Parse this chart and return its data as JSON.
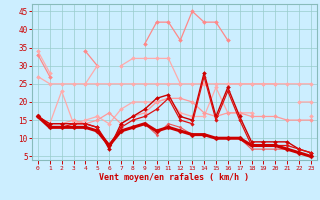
{
  "xlabel": "Vent moyen/en rafales ( km/h )",
  "background_color": "#cceeff",
  "grid_color": "#99cccc",
  "x": [
    0,
    1,
    2,
    3,
    4,
    5,
    6,
    7,
    8,
    9,
    10,
    11,
    12,
    13,
    14,
    15,
    16,
    17,
    18,
    19,
    20,
    21,
    22,
    23
  ],
  "ylim": [
    4,
    47
  ],
  "yticks": [
    5,
    10,
    15,
    20,
    25,
    30,
    35,
    40,
    45
  ],
  "lines": [
    {
      "y": [
        33,
        27,
        null,
        null,
        34,
        30,
        null,
        null,
        null,
        36,
        42,
        42,
        37,
        45,
        42,
        42,
        37,
        null,
        null,
        null,
        null,
        null,
        null,
        null
      ],
      "color": "#ff8888",
      "linewidth": 0.9,
      "marker": "D",
      "markersize": 2.0,
      "zorder": 2
    },
    {
      "y": [
        34,
        28,
        null,
        null,
        25,
        30,
        null,
        30,
        32,
        32,
        32,
        32,
        25,
        null,
        25,
        null,
        25,
        25,
        25,
        25,
        25,
        null,
        null,
        16
      ],
      "color": "#ffaaaa",
      "linewidth": 0.9,
      "marker": "D",
      "markersize": 2.0,
      "zorder": 2
    },
    {
      "y": [
        27,
        25,
        25,
        25,
        25,
        25,
        25,
        25,
        25,
        25,
        25,
        25,
        25,
        25,
        25,
        25,
        25,
        25,
        25,
        25,
        25,
        25,
        25,
        25
      ],
      "color": "#ffaaaa",
      "linewidth": 0.9,
      "marker": "D",
      "markersize": 2.0,
      "zorder": 2
    },
    {
      "y": [
        16,
        14,
        23,
        14,
        15,
        16,
        14,
        18,
        20,
        20,
        20,
        21,
        17,
        16,
        16,
        24,
        17,
        17,
        17,
        null,
        null,
        null,
        20,
        20
      ],
      "color": "#ffaaaa",
      "linewidth": 0.9,
      "marker": "D",
      "markersize": 2.0,
      "zorder": 2
    },
    {
      "y": [
        16,
        14,
        14,
        15,
        14,
        15,
        17,
        14,
        16,
        17,
        20,
        21,
        21,
        20,
        17,
        16,
        17,
        17,
        16,
        16,
        16,
        15,
        15,
        15
      ],
      "color": "#ff9999",
      "linewidth": 0.9,
      "marker": "D",
      "markersize": 2.0,
      "zorder": 2
    },
    {
      "y": [
        16,
        14,
        14,
        14,
        14,
        13,
        7,
        14,
        16,
        18,
        21,
        22,
        16,
        15,
        28,
        16,
        24,
        16,
        9,
        9,
        9,
        9,
        7,
        6
      ],
      "color": "#cc0000",
      "linewidth": 1.0,
      "marker": "D",
      "markersize": 2.0,
      "zorder": 3
    },
    {
      "y": [
        16,
        13,
        13,
        14,
        14,
        13,
        8,
        13,
        15,
        16,
        18,
        21,
        15,
        14,
        27,
        15,
        23,
        15,
        8,
        8,
        8,
        8,
        7,
        6
      ],
      "color": "#dd1111",
      "linewidth": 0.9,
      "marker": "D",
      "markersize": 1.8,
      "zorder": 3
    },
    {
      "y": [
        16,
        13,
        13,
        13,
        13,
        12,
        8,
        12,
        13,
        14,
        12,
        13,
        12,
        11,
        11,
        10,
        10,
        10,
        8,
        8,
        8,
        7,
        6,
        5
      ],
      "color": "#cc0000",
      "linewidth": 2.2,
      "marker": "D",
      "markersize": 2.5,
      "zorder": 4
    },
    {
      "y": [
        16,
        13,
        13,
        13,
        13,
        12,
        8,
        12,
        13,
        14,
        11,
        14,
        13,
        11,
        11,
        10,
        10,
        10,
        7,
        7,
        7,
        7,
        6,
        5
      ],
      "color": "#ee5555",
      "linewidth": 0.8,
      "marker": "D",
      "markersize": 1.5,
      "zorder": 3
    }
  ]
}
